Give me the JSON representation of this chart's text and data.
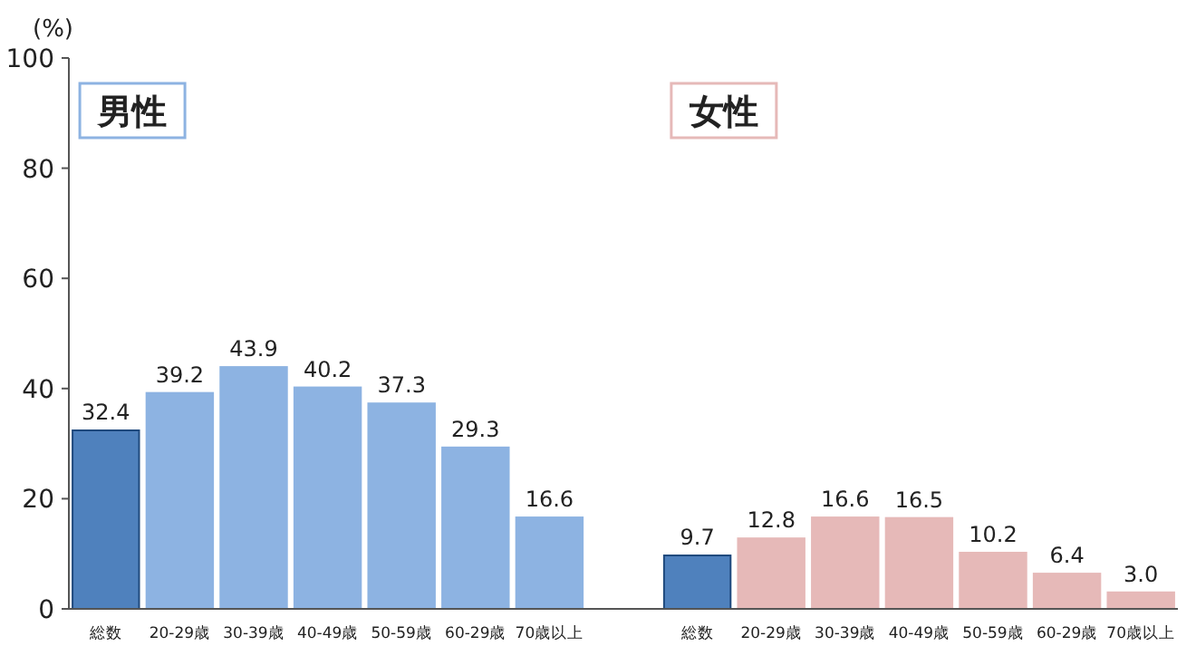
{
  "chart_data": {
    "type": "bar",
    "ylabel": "(%)",
    "categories": [
      "総数",
      "20-29歳",
      "30-39歳",
      "40-49歳",
      "50-59歳",
      "60-29歳",
      "70歳以上",
      null,
      "総数",
      "20-29歳",
      "30-39歳",
      "40-49歳",
      "50-59歳",
      "60-29歳",
      "70歳以上"
    ],
    "values": [
      32.4,
      39.2,
      43.9,
      40.2,
      37.3,
      29.3,
      16.6,
      null,
      9.7,
      12.8,
      16.6,
      16.5,
      10.2,
      6.4,
      3.0
    ],
    "value_labels": [
      "32.4",
      "39.2",
      "43.9",
      "40.2",
      "37.3",
      "29.3",
      "16.6",
      null,
      "9.7",
      "12.8",
      "16.6",
      "16.5",
      "10.2",
      "6.4",
      "3.0"
    ],
    "colors": [
      "#4f81bd",
      "#8db3e2",
      "#8db3e2",
      "#8db3e2",
      "#8db3e2",
      "#8db3e2",
      "#8db3e2",
      null,
      "#4f81bd",
      "#e6b9b8",
      "#e6b9b8",
      "#e6b9b8",
      "#e6b9b8",
      "#e6b9b8",
      "#e6b9b8"
    ],
    "ylim": [
      0,
      100
    ],
    "yticks": [
      0,
      20,
      40,
      60,
      80,
      100
    ],
    "grid": false,
    "annotations": [
      "男性",
      "女性"
    ]
  }
}
